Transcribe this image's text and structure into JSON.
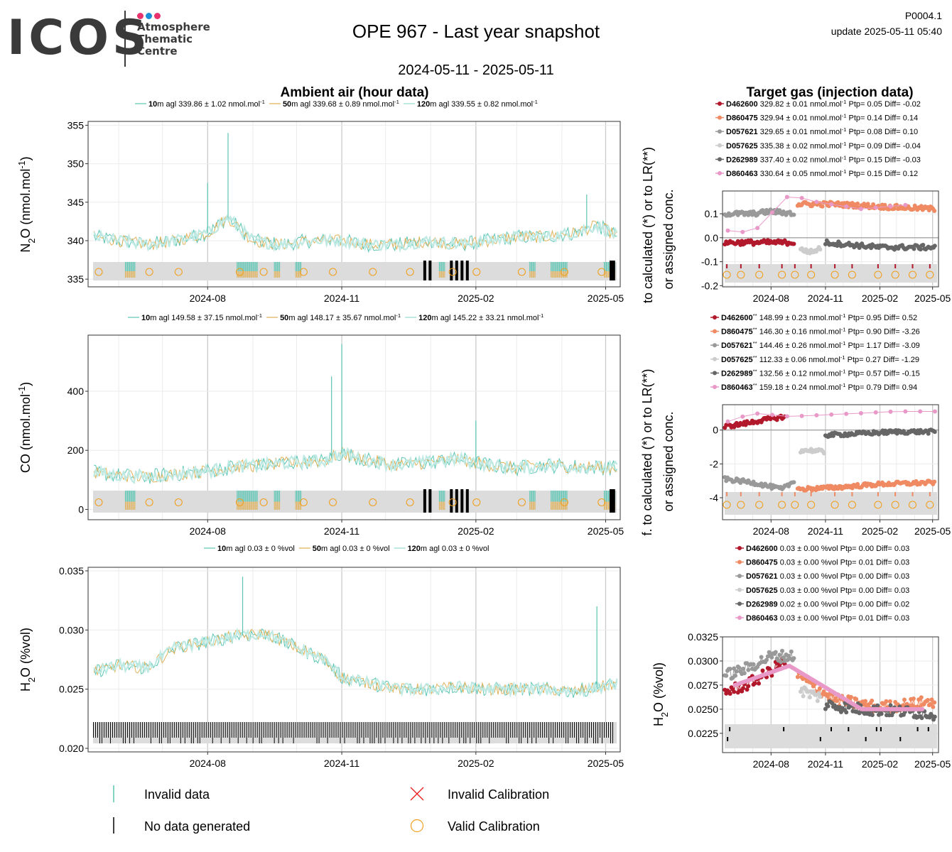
{
  "header": {
    "logo": "ICOS",
    "logo_sub": [
      "Atmosphere",
      "Thematic",
      "Centre"
    ],
    "title": "OPE 967 - Last year snapshot",
    "date_range": "2024-05-11 - 2025-05-11",
    "product_code": "P0004.1",
    "update": "update  2025-05-11 05:40"
  },
  "colors": {
    "h10": "#5cc6b4",
    "h50": "#e0b25c",
    "h120": "#bfe9e3",
    "target": [
      "#b2182b",
      "#ef8a62",
      "#999999",
      "#cccccc",
      "#666666",
      "#e899c8"
    ],
    "cal": "#f0a020",
    "panel_border": "#333333",
    "grid": "#ebebeb",
    "grid_major": "#c8c8c8",
    "flag_band": "#dcdcdc"
  },
  "sections": {
    "ambient": "Ambient air (hour data)",
    "target": "Target gas (injection data)"
  },
  "ambient_panels": [
    {
      "id": "n2o",
      "ylabel": "N2O (nmol.mol-1)",
      "legend": [
        {
          "height": "10",
          "text": "m agl 339.86 ± 1.02 nmol.mol",
          "sup": "-1"
        },
        {
          "height": "50",
          "text": "m agl 339.68 ± 0.89 nmol.mol",
          "sup": "-1"
        },
        {
          "height": "120",
          "text": "m agl 339.55 ± 0.82 nmol.mol",
          "sup": "-1"
        }
      ],
      "yticks": [
        "355",
        "350",
        "345",
        "340",
        "335"
      ]
    },
    {
      "id": "co",
      "ylabel": "CO (nmol.mol-1)",
      "legend": [
        {
          "height": "10",
          "text": "m agl 149.58 ± 37.15 nmol.mol",
          "sup": "-1"
        },
        {
          "height": "50",
          "text": "m agl 148.17 ± 35.67 nmol.mol",
          "sup": "-1"
        },
        {
          "height": "120",
          "text": "m agl 145.22 ± 33.21 nmol.mol",
          "sup": "-1"
        }
      ],
      "yticks": [
        "400",
        "200",
        "0"
      ]
    },
    {
      "id": "h2o",
      "ylabel": "H2O (%vol)",
      "legend": [
        {
          "height": "10",
          "text": "m agl 0.03 ± 0 %vol",
          "sup": ""
        },
        {
          "height": "50",
          "text": "m agl 0.03 ± 0 %vol",
          "sup": ""
        },
        {
          "height": "120",
          "text": "m agl 0.03 ± 0 %vol",
          "sup": ""
        }
      ],
      "yticks": [
        "0.035",
        "0.030",
        "0.025",
        "0.020"
      ]
    }
  ],
  "xticks": [
    "2024-08",
    "2024-11",
    "2025-02",
    "2025-05"
  ],
  "target_panels": [
    {
      "id": "n2o",
      "ylabel1": "to calculated (*) or to LR(**)",
      "ylabel2": "or assigned conc.",
      "legend": [
        {
          "name": "D462600",
          "suffix": "",
          "text": "329.82 ± 0.01 nmol.mol",
          "sup": "-1",
          "stats": "Ptp= 0.05 Diff= -0.02"
        },
        {
          "name": "D860475",
          "suffix": "",
          "text": "329.94 ± 0.01 nmol.mol",
          "sup": "-1",
          "stats": "Ptp= 0.14 Diff= 0.14"
        },
        {
          "name": "D057621",
          "suffix": "",
          "text": "329.65 ± 0.01 nmol.mol",
          "sup": "-1",
          "stats": "Ptp= 0.08 Diff= 0.10"
        },
        {
          "name": "D057625",
          "suffix": "",
          "text": "335.38 ± 0.02 nmol.mol",
          "sup": "-1",
          "stats": "Ptp= 0.09 Diff= -0.04"
        },
        {
          "name": "D262989",
          "suffix": "",
          "text": "337.40 ± 0.02 nmol.mol",
          "sup": "-1",
          "stats": "Ptp= 0.15 Diff= -0.03"
        },
        {
          "name": "D860463",
          "suffix": "",
          "text": "330.64 ± 0.05 nmol.mol",
          "sup": "-1",
          "stats": "Ptp= 0.15 Diff= 0.12"
        }
      ],
      "yticks": [
        "0.1",
        "0.0",
        "-0.1",
        "-0.2"
      ]
    },
    {
      "id": "co",
      "ylabel1": "f. to calculated (*) or to LR(**)",
      "ylabel2": "or assigned conc.",
      "legend": [
        {
          "name": "D462600",
          "suffix": "**",
          "text": "148.99 ± 0.23 nmol.mol",
          "sup": "-1",
          "stats": "Ptp= 0.95 Diff= 0.52"
        },
        {
          "name": "D860475",
          "suffix": "**",
          "text": "146.30 ± 0.16 nmol.mol",
          "sup": "-1",
          "stats": "Ptp= 0.90 Diff= -3.26"
        },
        {
          "name": "D057621",
          "suffix": "**",
          "text": "144.46 ± 0.26 nmol.mol",
          "sup": "-1",
          "stats": "Ptp= 1.17 Diff= -3.09"
        },
        {
          "name": "D057625",
          "suffix": "**",
          "text": "112.33 ± 0.06 nmol.mol",
          "sup": "-1",
          "stats": "Ptp= 0.27 Diff= -1.29"
        },
        {
          "name": "D262989",
          "suffix": "**",
          "text": "132.56 ± 0.12 nmol.mol",
          "sup": "-1",
          "stats": "Ptp= 0.57 Diff= -0.15"
        },
        {
          "name": "D860463",
          "suffix": "**",
          "text": "159.18 ± 0.24 nmol.mol",
          "sup": "-1",
          "stats": "Ptp= 0.79 Diff= 0.94"
        }
      ],
      "yticks": [
        "0",
        "-2",
        "-4"
      ]
    },
    {
      "id": "h2o",
      "ylabel1": "H2O (%vol)",
      "ylabel2": "",
      "legend": [
        {
          "name": "D462600",
          "suffix": "",
          "text": "0.03 ± 0.00 %vol",
          "sup": "",
          "stats": "Ptp= 0.00 Diff= 0.03"
        },
        {
          "name": "D860475",
          "suffix": "",
          "text": "0.03 ± 0.00 %vol",
          "sup": "",
          "stats": "Ptp= 0.01 Diff= 0.03"
        },
        {
          "name": "D057621",
          "suffix": "",
          "text": "0.03 ± 0.00 %vol",
          "sup": "",
          "stats": "Ptp= 0.00 Diff= 0.03"
        },
        {
          "name": "D057625",
          "suffix": "",
          "text": "0.03 ± 0.00 %vol",
          "sup": "",
          "stats": "Ptp= 0.00 Diff= 0.03"
        },
        {
          "name": "D262989",
          "suffix": "",
          "text": "0.02 ± 0.00 %vol",
          "sup": "",
          "stats": "Ptp= 0.00 Diff= 0.02"
        },
        {
          "name": "D860463",
          "suffix": "",
          "text": "0.03 ± 0.00 %vol",
          "sup": "",
          "stats": "Ptp= 0.01 Diff= 0.03"
        }
      ],
      "yticks": [
        "0.0325",
        "0.0300",
        "0.0275",
        "0.0250",
        "0.0225"
      ]
    }
  ],
  "bottom_legend": {
    "invalid_data": "Invalid data",
    "no_data": "No data generated",
    "invalid_cal": "Invalid Calibration",
    "valid_cal": "Valid Calibration"
  },
  "chart_data": [
    {
      "type": "line",
      "title": "Ambient air (hour data)",
      "ylabel": "N2O (nmol.mol-1)",
      "x_range": [
        "2024-05-11",
        "2025-05-11"
      ],
      "ylim": [
        334,
        355.5
      ],
      "series": [
        {
          "name": "10m agl",
          "mean": 339.86,
          "sd": 1.02
        },
        {
          "name": "50m agl",
          "mean": 339.68,
          "sd": 0.89
        },
        {
          "name": "120m agl",
          "mean": 339.55,
          "sd": 0.82
        }
      ],
      "x": [
        "2024-05-15",
        "2024-06-01",
        "2024-06-20",
        "2024-07-10",
        "2024-08-01",
        "2024-08-15",
        "2024-09-01",
        "2024-09-20",
        "2024-10-10",
        "2024-11-01",
        "2024-11-20",
        "2024-12-10",
        "2025-01-01",
        "2025-01-20",
        "2025-02-10",
        "2025-03-01",
        "2025-03-20",
        "2025-04-10",
        "2025-04-25",
        "2025-05-10"
      ],
      "y": [
        340.5,
        340,
        339.5,
        340,
        341,
        343,
        340,
        339.5,
        340,
        340,
        339.5,
        339.5,
        340,
        339.5,
        340,
        340.5,
        340.5,
        341,
        342,
        340.5
      ],
      "spikes": [
        {
          "x": "2024-08-01",
          "y": 347.5
        },
        {
          "x": "2024-08-15",
          "y": 354
        },
        {
          "x": "2025-04-18",
          "y": 346
        }
      ]
    },
    {
      "type": "line",
      "ylabel": "CO (nmol.mol-1)",
      "x_range": [
        "2024-05-11",
        "2025-05-11"
      ],
      "ylim": [
        -35,
        590
      ],
      "series": [
        {
          "name": "10m agl",
          "mean": 149.58,
          "sd": 37.15
        },
        {
          "name": "50m agl",
          "mean": 148.17,
          "sd": 35.67
        },
        {
          "name": "120m agl",
          "mean": 145.22,
          "sd": 33.21
        }
      ],
      "x": [
        "2024-05-15",
        "2024-06-01",
        "2024-06-20",
        "2024-07-10",
        "2024-08-01",
        "2024-08-20",
        "2024-09-10",
        "2024-10-01",
        "2024-10-20",
        "2024-11-01",
        "2024-11-20",
        "2024-12-10",
        "2025-01-01",
        "2025-01-20",
        "2025-02-10",
        "2025-03-01",
        "2025-03-20",
        "2025-04-10",
        "2025-05-10"
      ],
      "y": [
        125,
        115,
        110,
        120,
        130,
        145,
        150,
        160,
        165,
        190,
        165,
        150,
        160,
        170,
        150,
        140,
        150,
        145,
        140
      ],
      "spikes": [
        {
          "x": "2024-11-01",
          "y": 560
        },
        {
          "x": "2024-10-25",
          "y": 450
        },
        {
          "x": "2025-02-01",
          "y": 300
        }
      ]
    },
    {
      "type": "line",
      "ylabel": "H2O (%vol)",
      "x_range": [
        "2024-05-11",
        "2025-05-11"
      ],
      "ylim": [
        0.0197,
        0.0353
      ],
      "series": [
        {
          "name": "10m agl",
          "mean": 0.03,
          "sd": 0
        },
        {
          "name": "50m agl",
          "mean": 0.03,
          "sd": 0
        },
        {
          "name": "120m agl",
          "mean": 0.03,
          "sd": 0
        }
      ],
      "x": [
        "2024-05-15",
        "2024-06-01",
        "2024-06-20",
        "2024-07-10",
        "2024-08-01",
        "2024-08-20",
        "2024-09-10",
        "2024-10-01",
        "2024-10-20",
        "2024-11-01",
        "2024-11-20",
        "2024-12-10",
        "2025-01-01",
        "2025-01-20",
        "2025-02-10",
        "2025-03-01",
        "2025-03-20",
        "2025-04-10",
        "2025-05-10"
      ],
      "y": [
        0.0265,
        0.027,
        0.0268,
        0.0285,
        0.029,
        0.0295,
        0.0297,
        0.0285,
        0.0275,
        0.026,
        0.0255,
        0.025,
        0.025,
        0.0252,
        0.025,
        0.025,
        0.025,
        0.0248,
        0.0255
      ],
      "spikes": [
        {
          "x": "2024-08-25",
          "y": 0.0345
        },
        {
          "x": "2025-04-25",
          "y": 0.032
        }
      ]
    },
    {
      "type": "scatter",
      "title": "Target gas (injection data)",
      "ylim": [
        -0.205,
        0.195
      ],
      "series": [
        {
          "name": "D462600",
          "x": [
            "2024-05-15",
            "2024-07-01",
            "2024-08-20",
            "2024-09-10"
          ],
          "y": [
            -0.02,
            -0.02,
            -0.02,
            -0.02
          ]
        },
        {
          "name": "D860475",
          "x": [
            "2024-09-15",
            "2024-11-15",
            "2025-02-01",
            "2025-05-05"
          ],
          "y": [
            0.14,
            0.14,
            0.13,
            0.12
          ]
        },
        {
          "name": "D057621",
          "x": [
            "2024-05-15",
            "2024-07-01",
            "2024-08-01",
            "2024-09-10"
          ],
          "y": [
            0.1,
            0.1,
            0.11,
            0.1
          ]
        },
        {
          "name": "D057625",
          "x": [
            "2024-09-20",
            "2024-10-10",
            "2024-10-25"
          ],
          "y": [
            -0.05,
            -0.06,
            -0.04
          ]
        },
        {
          "name": "D262989",
          "x": [
            "2024-11-01",
            "2024-12-15",
            "2025-02-01",
            "2025-05-05"
          ],
          "y": [
            -0.02,
            -0.03,
            -0.04,
            -0.04
          ]
        },
        {
          "name": "D860463",
          "x": [
            "2024-05-20",
            "2024-07-01",
            "2024-09-01",
            "2024-10-15",
            "2025-01-01",
            "2025-04-01"
          ],
          "y": [
            0.03,
            0.02,
            0.18,
            0.15,
            0.12,
            0.14
          ]
        }
      ]
    },
    {
      "type": "scatter",
      "ylim": [
        -5.3,
        1.5
      ],
      "series": [
        {
          "name": "D462600",
          "x": [
            "2024-05-15",
            "2024-06-20",
            "2024-07-20",
            "2024-08-25"
          ],
          "y": [
            0.2,
            0.4,
            0.6,
            0.8
          ]
        },
        {
          "name": "D860475",
          "x": [
            "2024-09-15",
            "2024-11-15",
            "2025-02-01",
            "2025-05-05"
          ],
          "y": [
            -3.5,
            -3.4,
            -3.2,
            -3.1
          ]
        },
        {
          "name": "D057621",
          "x": [
            "2024-05-15",
            "2024-07-01",
            "2024-08-20",
            "2024-09-10"
          ],
          "y": [
            -2.9,
            -3.1,
            -3.5,
            -3.0
          ]
        },
        {
          "name": "D057625",
          "x": [
            "2024-09-20",
            "2024-10-10",
            "2024-10-30"
          ],
          "y": [
            -1.2,
            -1.2,
            -1.3
          ]
        },
        {
          "name": "D262989",
          "x": [
            "2024-11-01",
            "2025-01-01",
            "2025-03-01",
            "2025-05-05"
          ],
          "y": [
            -0.3,
            -0.2,
            -0.1,
            -0.1
          ]
        },
        {
          "name": "D860463",
          "x": [
            "2024-05-20",
            "2024-07-01",
            "2024-09-01",
            "2024-11-01",
            "2025-01-01",
            "2025-03-01",
            "2025-05-05"
          ],
          "y": [
            0.5,
            1.0,
            0.8,
            0.9,
            1.0,
            1.1,
            1.1
          ]
        }
      ]
    },
    {
      "type": "scatter",
      "ylabel": "H2O (%vol)",
      "ylim": [
        0.0205,
        0.0325
      ],
      "series": [
        {
          "name": "D462600",
          "x": [
            "2024-05-15",
            "2024-06-20",
            "2024-07-20",
            "2024-08-25"
          ],
          "y": [
            0.0268,
            0.0275,
            0.0285,
            0.03
          ]
        },
        {
          "name": "D860475",
          "x": [
            "2024-09-15",
            "2024-11-15",
            "2025-02-01",
            "2025-05-05"
          ],
          "y": [
            0.0285,
            0.026,
            0.0252,
            0.0258
          ]
        },
        {
          "name": "D057621",
          "x": [
            "2024-05-15",
            "2024-06-20",
            "2024-08-01",
            "2024-09-10"
          ],
          "y": [
            0.0285,
            0.0292,
            0.0305,
            0.0305
          ]
        },
        {
          "name": "D057625",
          "x": [
            "2024-09-20",
            "2024-10-10",
            "2024-10-25"
          ],
          "y": [
            0.027,
            0.0265,
            0.0262
          ]
        },
        {
          "name": "D262989",
          "x": [
            "2024-11-01",
            "2025-01-01",
            "2025-03-01",
            "2025-05-05"
          ],
          "y": [
            0.0255,
            0.025,
            0.0248,
            0.0245
          ]
        },
        {
          "name": "D860463",
          "x": [
            "2024-06-01",
            "2024-09-01",
            "2025-01-01",
            "2025-04-15"
          ],
          "y": [
            0.0275,
            0.0295,
            0.025,
            0.025
          ]
        }
      ]
    }
  ]
}
